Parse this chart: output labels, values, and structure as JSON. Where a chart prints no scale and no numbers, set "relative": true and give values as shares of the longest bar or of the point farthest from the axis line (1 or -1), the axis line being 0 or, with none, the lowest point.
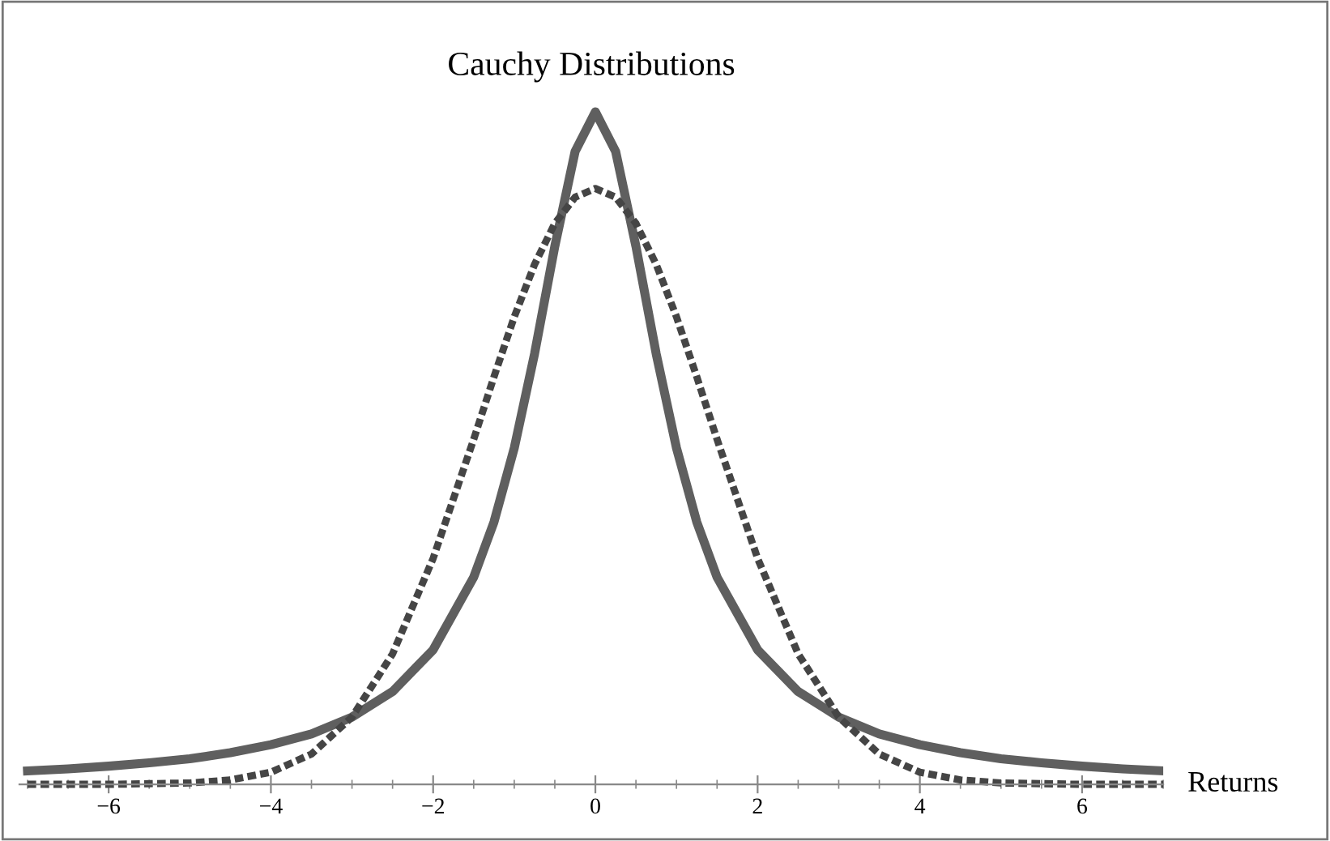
{
  "chart_data": {
    "type": "line",
    "title": "Cauchy Distributions",
    "xlabel": "Returns",
    "relative": true,
    "xlim": [
      -7.1,
      7
    ],
    "xticks": [
      {
        "value": -6,
        "label": "−6"
      },
      {
        "value": -4,
        "label": "−4"
      },
      {
        "value": -2,
        "label": "−2"
      },
      0,
      2,
      4,
      6
    ],
    "grid": false,
    "legend": false,
    "marker": "none",
    "x": [
      -7,
      -6.5,
      -6,
      -5.5,
      -5,
      -4.5,
      -4,
      -3.5,
      -3,
      -2.5,
      -2,
      -1.5,
      -1.25,
      -1,
      -0.75,
      -0.5,
      -0.25,
      0,
      0.25,
      0.5,
      0.75,
      1,
      1.25,
      1.5,
      2,
      2.5,
      3,
      3.5,
      4,
      4.5,
      5,
      5.5,
      6,
      6.5,
      7
    ],
    "series": [
      {
        "color": "#5f5f5f",
        "line_style": "solid",
        "values": [
          0.02,
          0.023,
          0.027,
          0.032,
          0.038,
          0.047,
          0.059,
          0.075,
          0.1,
          0.138,
          0.2,
          0.308,
          0.39,
          0.5,
          0.64,
          0.8,
          0.941,
          1,
          0.941,
          0.8,
          0.64,
          0.5,
          0.39,
          0.308,
          0.2,
          0.138,
          0.1,
          0.075,
          0.059,
          0.047,
          0.038,
          0.032,
          0.027,
          0.023,
          0.02
        ]
      },
      {
        "color": "#454545",
        "line_style": "dotted",
        "values": [
          0,
          0,
          0,
          0.001,
          0.002,
          0.0065,
          0.018,
          0.045,
          0.1,
          0.194,
          0.336,
          0.513,
          0.606,
          0.695,
          0.773,
          0.834,
          0.873,
          0.886,
          0.873,
          0.834,
          0.773,
          0.695,
          0.606,
          0.513,
          0.336,
          0.194,
          0.1,
          0.045,
          0.018,
          0.0065,
          0.002,
          0.001,
          0,
          0,
          0
        ]
      }
    ]
  }
}
